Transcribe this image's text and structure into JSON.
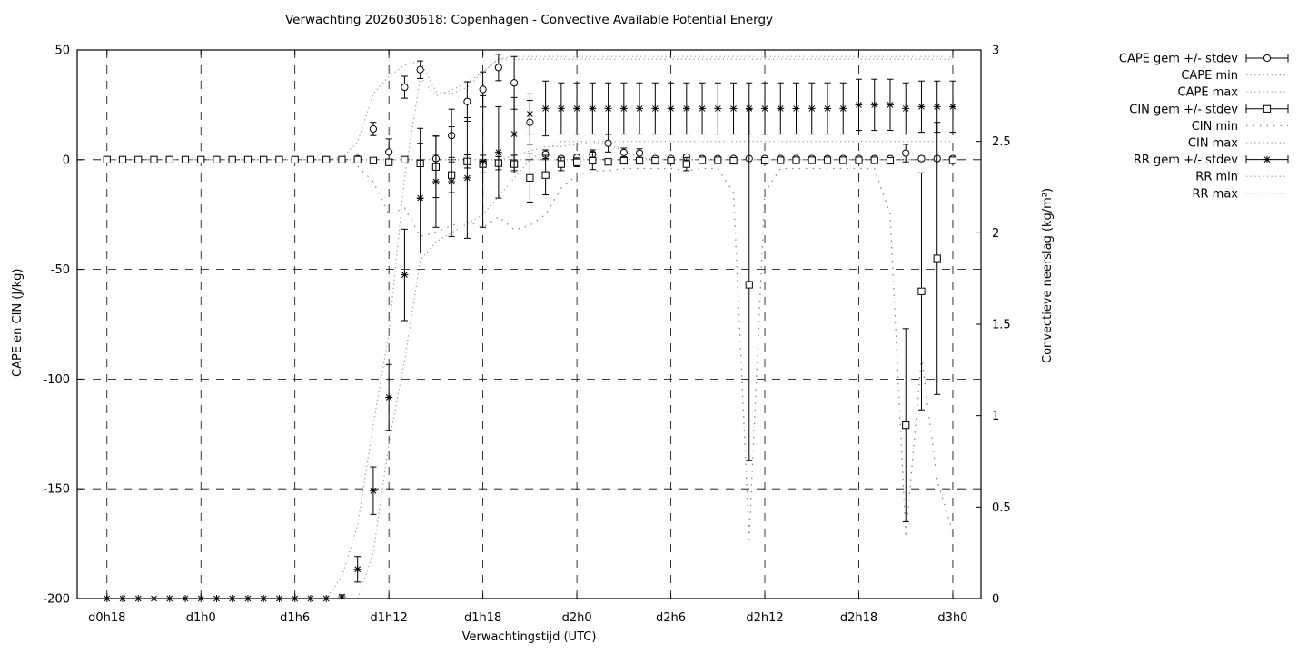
{
  "title": "Verwachting 2026030618: Copenhagen - Convective Available Potential Energy",
  "colors": {
    "foreground": "#000000",
    "background": "#ffffff",
    "dotted": "#999999",
    "dotted_sparse": "#888888"
  },
  "axes": {
    "left": {
      "label": "CAPE en CIN (J/kg)",
      "ticks": [
        50,
        0,
        -50,
        -100,
        -150,
        -200
      ],
      "range": [
        -200,
        50
      ]
    },
    "right": {
      "label": "Convectieve neerslag (kg/m²)",
      "ticks": [
        3,
        2.5,
        2,
        1.5,
        1,
        0.5,
        0
      ],
      "range": [
        0,
        3
      ]
    },
    "x": {
      "label": "Verwachtingstijd (UTC)",
      "tick_hours": [
        18,
        24,
        30,
        36,
        42,
        48,
        54,
        60,
        66,
        72
      ],
      "tick_labels": [
        "d0h18",
        "d1h0",
        "d1h6",
        "d1h12",
        "d1h18",
        "d2h0",
        "d2h6",
        "d2h12",
        "d2h18",
        "d3h0"
      ],
      "range_hours": [
        16.1,
        73.8
      ]
    }
  },
  "legend": [
    {
      "label": "CAPE gem +/- stdev",
      "style": "errorbar",
      "marker": "circle"
    },
    {
      "label": "CAPE min",
      "style": "dotted",
      "series": "cape_min"
    },
    {
      "label": "CAPE max",
      "style": "dotted",
      "series": "cape_max"
    },
    {
      "label": "CIN gem +/- stdev",
      "style": "errorbar",
      "marker": "square"
    },
    {
      "label": "CIN min",
      "style": "dotted-sparse",
      "series": "cin_min"
    },
    {
      "label": "CIN max",
      "style": "dotted",
      "series": "cin_max"
    },
    {
      "label": "RR gem +/- stdev",
      "style": "errorbar",
      "marker": "star"
    },
    {
      "label": "RR min",
      "style": "dotted",
      "series": "rr_min"
    },
    {
      "label": "RR max",
      "style": "dotted",
      "series": "rr_max"
    }
  ],
  "chart_data": {
    "type": "line",
    "x_hours": [
      18,
      19,
      20,
      21,
      22,
      23,
      24,
      25,
      26,
      27,
      28,
      29,
      30,
      31,
      32,
      33,
      34,
      35,
      36,
      37,
      38,
      39,
      40,
      41,
      42,
      43,
      44,
      45,
      46,
      47,
      48,
      49,
      50,
      51,
      52,
      53,
      54,
      55,
      56,
      57,
      58,
      59,
      60,
      61,
      62,
      63,
      64,
      65,
      66,
      67,
      68,
      69,
      70,
      71,
      72
    ],
    "series": [
      {
        "name": "CAPE gem",
        "key": "cape_gem",
        "axis": "left",
        "marker": "circle",
        "values": [
          0,
          0,
          0,
          0,
          0,
          0,
          0,
          0,
          0,
          0,
          0,
          0,
          0,
          0,
          0,
          0,
          0.5,
          14,
          3.5,
          33,
          41,
          0.5,
          11,
          26.5,
          32,
          42,
          35,
          17,
          2.5,
          0.5,
          1,
          2.5,
          7.5,
          3.3,
          3,
          0.5,
          0.5,
          1.2,
          0.5,
          0.5,
          0.5,
          0.5,
          0.5,
          0.5,
          0.5,
          0.5,
          0.5,
          0.5,
          0.5,
          0.5,
          0.5,
          3,
          0.5,
          0.5,
          0.5
        ],
        "stdev": [
          0,
          0,
          0,
          0,
          0,
          0,
          0,
          0,
          0,
          0,
          0,
          0,
          0,
          0,
          0,
          0,
          1,
          3,
          6,
          5,
          4,
          2,
          12,
          9,
          8,
          6,
          12,
          10,
          2,
          1,
          1,
          2,
          4,
          2,
          2,
          0.5,
          0.5,
          1,
          0.5,
          0.5,
          0.5,
          0.5,
          0.5,
          0.5,
          0.5,
          0.5,
          0.5,
          0.5,
          0.5,
          0.5,
          0.5,
          4,
          1,
          1,
          0.5
        ]
      },
      {
        "name": "CAPE min",
        "key": "cape_min",
        "axis": "left",
        "style": "dotted",
        "values": [
          0,
          0,
          0,
          0,
          0,
          0,
          0,
          0,
          0,
          0,
          0,
          0,
          0,
          0,
          0,
          0,
          0,
          0,
          0,
          0,
          0,
          0,
          0,
          0,
          0,
          0,
          2,
          4,
          6,
          6,
          7,
          8,
          7,
          4,
          1,
          0,
          0,
          0,
          0,
          0,
          0,
          0,
          0,
          0,
          0,
          0,
          0,
          0,
          0,
          0,
          0,
          0,
          0,
          0,
          0
        ]
      },
      {
        "name": "CAPE max",
        "key": "cape_max",
        "axis": "left",
        "style": "dotted",
        "values": [
          0,
          0,
          0,
          0,
          0,
          0,
          0,
          0,
          0,
          0,
          0,
          0,
          0,
          0,
          0,
          1,
          8,
          30,
          38,
          43,
          45,
          31,
          30,
          33,
          40,
          46,
          47,
          47,
          47,
          47,
          47,
          47,
          47,
          47,
          47,
          47,
          47,
          47,
          47,
          47,
          47,
          47,
          47,
          47,
          47,
          47,
          47,
          47,
          47,
          47,
          47,
          47,
          47,
          47,
          47
        ]
      },
      {
        "name": "CIN gem",
        "key": "cin_gem",
        "axis": "left",
        "marker": "square",
        "values": [
          0,
          0,
          0,
          0,
          0,
          0,
          0,
          0,
          0,
          0,
          0,
          0,
          0,
          0,
          0,
          0,
          0,
          -0.4,
          -1.2,
          0,
          -1.7,
          -3.3,
          -7,
          -0.8,
          -2,
          -1.6,
          -2,
          -8.3,
          -7,
          -2,
          -1.2,
          -0.5,
          -1,
          -0.5,
          -0.5,
          -0.5,
          -0.5,
          -2,
          -0.3,
          -0.3,
          -0.5,
          -57,
          -0.5,
          -0.3,
          -0.3,
          -0.3,
          -0.3,
          -0.3,
          -0.3,
          -0.3,
          -0.5,
          -121,
          -60,
          -45,
          -0.3
        ],
        "stdev": [
          0,
          0,
          0,
          0,
          0,
          0,
          0,
          0,
          0,
          0,
          0,
          0,
          0,
          0,
          0,
          0,
          0,
          0,
          0,
          0,
          16,
          14,
          8,
          3,
          4,
          3,
          4,
          11,
          9,
          3,
          2,
          4,
          1,
          0.5,
          0.5,
          0.5,
          0.5,
          3,
          0.3,
          0.3,
          0.5,
          80,
          0.5,
          0.3,
          0.3,
          0.3,
          0.3,
          0.3,
          0.3,
          0.3,
          0.5,
          44,
          54,
          62,
          0.3
        ]
      },
      {
        "name": "CIN min",
        "key": "cin_min",
        "axis": "left",
        "style": "dotted-sparse",
        "values": [
          0,
          0,
          0,
          0,
          0,
          0,
          0,
          0,
          0,
          0,
          0,
          0,
          0,
          0,
          0,
          0,
          -3,
          -10,
          -25,
          -22,
          -35,
          -33,
          -30,
          -28,
          -31,
          -26,
          -32,
          -30,
          -25,
          -13,
          -7,
          -5,
          -5,
          -4,
          -4,
          -4,
          -4,
          -5,
          -4,
          -4,
          -15,
          -173,
          -15,
          -4,
          -4,
          -4,
          -4,
          -4,
          -4,
          -4,
          -25,
          -172,
          -90,
          -146,
          -170
        ]
      },
      {
        "name": "CIN max",
        "key": "cin_max",
        "axis": "left",
        "style": "dotted",
        "values": [
          0,
          0,
          0,
          0,
          0,
          0,
          0,
          0,
          0,
          0,
          0,
          0,
          0,
          0,
          0,
          0,
          0,
          0,
          0,
          0,
          0,
          0,
          0,
          0,
          0,
          0,
          0,
          0,
          0,
          0,
          0,
          0,
          0,
          0,
          0,
          0,
          0,
          0,
          0,
          0,
          0,
          0,
          0,
          0,
          0,
          0,
          0,
          0,
          0,
          0,
          0,
          0,
          0,
          0,
          0
        ]
      },
      {
        "name": "RR gem",
        "key": "rr_gem",
        "axis": "right",
        "marker": "star",
        "values": [
          0,
          0,
          0,
          0,
          0,
          0,
          0,
          0,
          0,
          0,
          0,
          0,
          0,
          0,
          0,
          0.01,
          0.16,
          0.59,
          1.1,
          1.77,
          2.19,
          2.28,
          2.28,
          2.3,
          2.39,
          2.44,
          2.54,
          2.65,
          2.68,
          2.68,
          2.68,
          2.68,
          2.68,
          2.68,
          2.68,
          2.68,
          2.68,
          2.68,
          2.68,
          2.68,
          2.68,
          2.68,
          2.68,
          2.68,
          2.68,
          2.68,
          2.68,
          2.68,
          2.7,
          2.7,
          2.7,
          2.68,
          2.69,
          2.69,
          2.69
        ],
        "stdev": [
          0,
          0,
          0,
          0,
          0,
          0,
          0,
          0,
          0,
          0,
          0,
          0,
          0,
          0,
          0,
          0.01,
          0.07,
          0.13,
          0.18,
          0.25,
          0.3,
          0.25,
          0.3,
          0.33,
          0.36,
          0.25,
          0.2,
          0.11,
          0.15,
          0.14,
          0.14,
          0.14,
          0.14,
          0.14,
          0.14,
          0.14,
          0.14,
          0.14,
          0.14,
          0.14,
          0.14,
          0.14,
          0.14,
          0.14,
          0.14,
          0.14,
          0.14,
          0.14,
          0.14,
          0.14,
          0.14,
          0.14,
          0.14,
          0.14,
          0.14
        ]
      },
      {
        "name": "RR min",
        "key": "rr_min",
        "axis": "right",
        "style": "dotted",
        "values": [
          0,
          0,
          0,
          0,
          0,
          0,
          0,
          0,
          0,
          0,
          0,
          0,
          0,
          0,
          0,
          0,
          0,
          0.25,
          0.85,
          1.3,
          1.85,
          1.95,
          2.0,
          2.05,
          2.1,
          2.2,
          2.3,
          2.4,
          2.45,
          2.5,
          2.5,
          2.5,
          2.5,
          2.5,
          2.5,
          2.5,
          2.5,
          2.5,
          2.5,
          2.5,
          2.5,
          2.5,
          2.5,
          2.5,
          2.5,
          2.5,
          2.5,
          2.5,
          2.5,
          2.5,
          2.5,
          2.5,
          2.5,
          2.5,
          2.5
        ]
      },
      {
        "name": "RR max",
        "key": "rr_max",
        "axis": "right",
        "style": "dotted",
        "values": [
          0,
          0,
          0,
          0,
          0,
          0,
          0,
          0,
          0,
          0,
          0,
          0,
          0,
          0,
          0,
          0.12,
          0.4,
          0.95,
          1.45,
          2.3,
          2.85,
          2.75,
          2.78,
          2.82,
          2.88,
          2.95,
          2.95,
          2.95,
          2.95,
          2.95,
          2.95,
          2.95,
          2.95,
          2.95,
          2.95,
          2.95,
          2.95,
          2.95,
          2.95,
          2.95,
          2.95,
          2.95,
          2.95,
          2.95,
          2.95,
          2.95,
          2.95,
          2.95,
          2.95,
          2.95,
          2.95,
          2.95,
          2.95,
          2.95,
          2.95
        ]
      }
    ]
  }
}
